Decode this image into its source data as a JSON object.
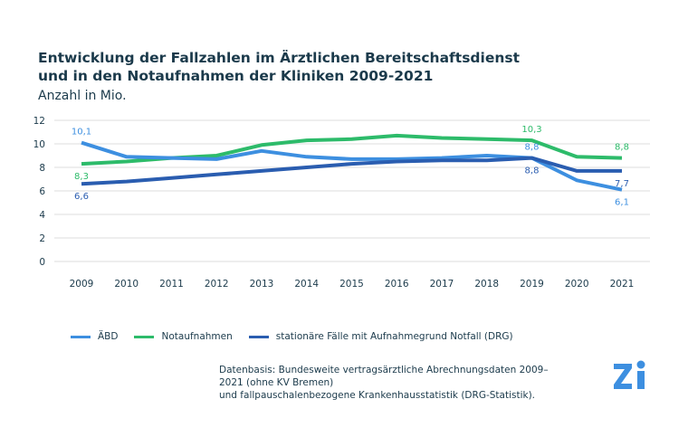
{
  "chart_data": {
    "type": "line",
    "title": "Entwicklung der Fallzahlen im Ärztlichen Bereitschaftsdienst und in den Notaufnahmen der Kliniken 2009-2021",
    "subtitle": "Anzahl in Mio.",
    "x": [
      "2009",
      "2010",
      "2011",
      "2012",
      "2013",
      "2014",
      "2015",
      "2016",
      "2017",
      "2018",
      "2019",
      "2020",
      "2021"
    ],
    "yticks": [
      "0",
      "2",
      "4",
      "6",
      "8",
      "10",
      "12"
    ],
    "ylim": [
      0,
      12
    ],
    "grid": true,
    "legend_placement": "bottom-left",
    "series": [
      {
        "name": "ÄBD",
        "color": "#3d8fe0",
        "values": [
          10.1,
          8.9,
          8.8,
          8.7,
          9.4,
          8.9,
          8.7,
          8.7,
          8.8,
          9.0,
          8.8,
          6.9,
          6.1
        ]
      },
      {
        "name": "Notaufnahmen",
        "color": "#2dbb6a",
        "values": [
          8.3,
          8.5,
          8.8,
          9.0,
          9.9,
          10.3,
          10.4,
          10.7,
          10.5,
          10.4,
          10.3,
          8.9,
          8.8
        ]
      },
      {
        "name": "stationäre Fälle mit Aufnahmegrund Notfall (DRG)",
        "color": "#2a5db0",
        "values": [
          6.6,
          6.8,
          7.1,
          7.4,
          7.7,
          8.0,
          8.3,
          8.5,
          8.6,
          8.6,
          8.8,
          7.7,
          7.7
        ]
      }
    ],
    "annotations": [
      {
        "series": 0,
        "index": 0,
        "text": "10,1",
        "pos": "above"
      },
      {
        "series": 1,
        "index": 0,
        "text": "8,3",
        "pos": "below"
      },
      {
        "series": 2,
        "index": 0,
        "text": "6,6",
        "pos": "below"
      },
      {
        "series": 1,
        "index": 10,
        "text": "10,3",
        "pos": "above"
      },
      {
        "series": 0,
        "index": 10,
        "text": "8,8",
        "pos": "above"
      },
      {
        "series": 2,
        "index": 10,
        "text": "8,8",
        "pos": "below"
      },
      {
        "series": 1,
        "index": 12,
        "text": "8,8",
        "pos": "above"
      },
      {
        "series": 2,
        "index": 12,
        "text": "7,7",
        "pos": "below"
      },
      {
        "series": 0,
        "index": 12,
        "text": "6,1",
        "pos": "below"
      }
    ]
  },
  "source": {
    "line1": "Datenbasis: Bundesweite vertragsärztliche Abrechnungsdaten 2009–2021 (ohne KV Bremen)",
    "line2": "und fallpauschalenbezogene Krankenhausstatistik (DRG-Statistik)."
  },
  "logo": {
    "text": "Zi",
    "color": "#3d8fe0"
  }
}
